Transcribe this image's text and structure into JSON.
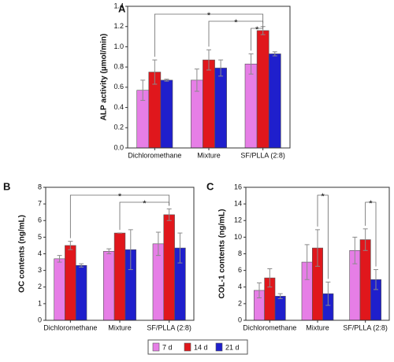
{
  "legend": [
    {
      "name": "7 d",
      "color": "#e67ee6"
    },
    {
      "name": "14 d",
      "color": "#e0171c"
    },
    {
      "name": "21 d",
      "color": "#1f1fcc"
    }
  ],
  "chart_data": [
    {
      "type": "bar",
      "panel": "A",
      "ylabel": "ALP activity (µmol/min)",
      "categories": [
        "Dichloromethane",
        "Mixture",
        "SF/PLLA (2:8)"
      ],
      "series": [
        {
          "values": [
            0.57,
            0.67,
            0.83
          ],
          "errors": [
            0.1,
            0.11,
            0.1
          ]
        },
        {
          "values": [
            0.75,
            0.87,
            1.16
          ],
          "errors": [
            0.12,
            0.1,
            0.04
          ]
        },
        {
          "values": [
            0.67,
            0.79,
            0.93
          ],
          "errors": [
            0.01,
            0.08,
            0.02
          ]
        }
      ],
      "ylim": [
        0,
        1.4
      ],
      "yticks": [
        {
          "value": 0,
          "label": "0.0"
        },
        0.2,
        0.4,
        0.6,
        0.8,
        {
          "value": 1,
          "label": "1.0"
        },
        1.2,
        1.4
      ],
      "brackets": [
        {
          "label": "*",
          "from": [
            0,
            1
          ],
          "to": [
            2,
            1
          ]
        },
        {
          "label": "*",
          "from": [
            1,
            1
          ],
          "to": [
            2,
            1
          ]
        },
        {
          "label": "*",
          "from": [
            2,
            0
          ],
          "to": [
            2,
            1
          ]
        }
      ]
    },
    {
      "type": "bar",
      "panel": "B",
      "ylabel": "OC contents (ng/mL)",
      "categories": [
        "Dichloromethane",
        "Mixture",
        "SF/PLLA (2:8)"
      ],
      "series": [
        {
          "values": [
            3.7,
            4.15,
            4.6
          ],
          "errors": [
            0.2,
            0.15,
            0.7
          ]
        },
        {
          "values": [
            4.5,
            5.25,
            6.35
          ],
          "errors": [
            0.25,
            0,
            0.35
          ]
        },
        {
          "values": [
            3.3,
            4.25,
            4.35
          ],
          "errors": [
            0.1,
            1.2,
            0.9
          ]
        }
      ],
      "ylim": [
        0,
        8
      ],
      "yticks": [
        0,
        1,
        2,
        3,
        4,
        5,
        6,
        7,
        8
      ],
      "brackets": [
        {
          "label": "*",
          "from": [
            0,
            1
          ],
          "to": [
            2,
            1
          ]
        },
        {
          "label": "*",
          "from": [
            1,
            1
          ],
          "to": [
            2,
            1
          ]
        }
      ]
    },
    {
      "type": "bar",
      "panel": "C",
      "ylabel": "COL-1 contents (ng/mL)",
      "categories": [
        "Dichloromethane",
        "Mixture",
        "SF/PLLA (2:8)"
      ],
      "series": [
        {
          "values": [
            3.6,
            7.0,
            8.4
          ],
          "errors": [
            0.9,
            2.1,
            1.6
          ]
        },
        {
          "values": [
            5.1,
            8.7,
            9.7
          ],
          "errors": [
            1.1,
            2.2,
            1.3
          ]
        },
        {
          "values": [
            2.9,
            3.2,
            4.9
          ],
          "errors": [
            0.3,
            1.4,
            1.2
          ]
        }
      ],
      "ylim": [
        0,
        16
      ],
      "yticks": [
        0,
        2,
        4,
        6,
        8,
        10,
        12,
        14,
        16
      ],
      "brackets": [
        {
          "label": "*",
          "from": [
            1,
            1
          ],
          "to": [
            1,
            2
          ]
        },
        {
          "label": "*",
          "from": [
            2,
            1
          ],
          "to": [
            2,
            2
          ]
        }
      ]
    }
  ]
}
